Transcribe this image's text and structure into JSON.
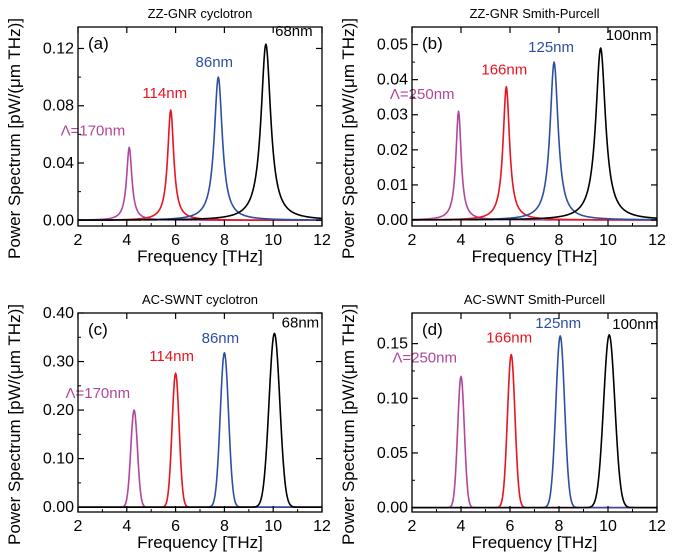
{
  "chart_data": [
    {
      "type": "line",
      "panel": "(a)",
      "title": "ZZ-GNR cyclotron",
      "xlabel": "Frequency [THz]",
      "ylabel": "Power Spectrum [pW/(μm THz)]",
      "xlim": [
        2,
        12
      ],
      "ylim": [
        -0.004,
        0.135
      ],
      "xticks": [
        2,
        4,
        6,
        8,
        10,
        12
      ],
      "yticks": [
        0.0,
        0.04,
        0.08,
        0.12
      ],
      "ytick_labels": [
        "0.00",
        "0.04",
        "0.08",
        "0.12"
      ],
      "series": [
        {
          "name": "Λ=170nm",
          "color": "#b3469a",
          "center": 4.1,
          "peak": 0.051,
          "hwhm": 0.13,
          "profile": "lorentz"
        },
        {
          "name": "114nm",
          "color": "#e8141f",
          "center": 5.8,
          "peak": 0.077,
          "hwhm": 0.15,
          "profile": "lorentz"
        },
        {
          "name": "86nm",
          "color": "#2d4fa3",
          "center": 7.75,
          "peak": 0.1,
          "hwhm": 0.2,
          "profile": "lorentz"
        },
        {
          "name": "68nm",
          "color": "#000000",
          "center": 9.7,
          "peak": 0.123,
          "hwhm": 0.24,
          "profile": "lorentz"
        }
      ]
    },
    {
      "type": "line",
      "panel": "(b)",
      "title": "ZZ-GNR Smith-Purcell",
      "xlabel": "Frequency [THz]",
      "ylabel": "Power Spectrum [pW/(μm THz)]",
      "xlim": [
        2,
        12
      ],
      "ylim": [
        -0.0017,
        0.055
      ],
      "xticks": [
        2,
        4,
        6,
        8,
        10,
        12
      ],
      "yticks": [
        0.0,
        0.01,
        0.02,
        0.03,
        0.04,
        0.05
      ],
      "ytick_labels": [
        "0.00",
        "0.01",
        "0.02",
        "0.03",
        "0.04",
        "0.05"
      ],
      "series": [
        {
          "name": "Λ=250nm",
          "color": "#b3469a",
          "center": 3.9,
          "peak": 0.031,
          "hwhm": 0.13,
          "profile": "lorentz"
        },
        {
          "name": "166nm",
          "color": "#e8141f",
          "center": 5.85,
          "peak": 0.038,
          "hwhm": 0.16,
          "profile": "lorentz"
        },
        {
          "name": "125nm",
          "color": "#2d4fa3",
          "center": 7.8,
          "peak": 0.045,
          "hwhm": 0.2,
          "profile": "lorentz"
        },
        {
          "name": "100nm",
          "color": "#000000",
          "center": 9.7,
          "peak": 0.049,
          "hwhm": 0.24,
          "profile": "lorentz"
        }
      ]
    },
    {
      "type": "line",
      "panel": "(c)",
      "title": "AC-SWNT cyclotron",
      "xlabel": "Frequency [THz]",
      "ylabel": "Power Spectrum [pW/(μm THz)]",
      "xlim": [
        2,
        12
      ],
      "ylim": [
        -0.01,
        0.4
      ],
      "xticks": [
        2,
        4,
        6,
        8,
        10,
        12
      ],
      "yticks": [
        0.0,
        0.1,
        0.2,
        0.3,
        0.4
      ],
      "ytick_labels": [
        "0.00",
        "0.10",
        "0.20",
        "0.30",
        "0.40"
      ],
      "series": [
        {
          "name": "Λ=170nm",
          "color": "#b3469a",
          "center": 4.3,
          "peak": 0.2,
          "hwhm": 0.16,
          "profile": "gauss"
        },
        {
          "name": "114nm",
          "color": "#e8141f",
          "center": 6.0,
          "peak": 0.276,
          "hwhm": 0.17,
          "profile": "gauss"
        },
        {
          "name": "86nm",
          "color": "#2d4fa3",
          "center": 8.0,
          "peak": 0.318,
          "hwhm": 0.2,
          "profile": "gauss"
        },
        {
          "name": "68nm",
          "color": "#000000",
          "center": 10.05,
          "peak": 0.358,
          "hwhm": 0.26,
          "profile": "gauss"
        }
      ]
    },
    {
      "type": "line",
      "panel": "(d)",
      "title": "AC-SWNT Smith-Purcell",
      "xlabel": "Frequency [THz]",
      "ylabel": "Power Spectrum [pW/(μm THz)]",
      "xlim": [
        2,
        12
      ],
      "ylim": [
        -0.004,
        0.178
      ],
      "xticks": [
        2,
        4,
        6,
        8,
        10,
        12
      ],
      "yticks": [
        0.0,
        0.05,
        0.1,
        0.15
      ],
      "ytick_labels": [
        "0.00",
        "0.05",
        "0.10",
        "0.15"
      ],
      "series": [
        {
          "name": "Λ=250nm",
          "color": "#b3469a",
          "center": 4.0,
          "peak": 0.12,
          "hwhm": 0.16,
          "profile": "gauss"
        },
        {
          "name": "166nm",
          "color": "#e8141f",
          "center": 6.05,
          "peak": 0.14,
          "hwhm": 0.18,
          "profile": "gauss"
        },
        {
          "name": "125nm",
          "color": "#2d4fa3",
          "center": 8.05,
          "peak": 0.157,
          "hwhm": 0.21,
          "profile": "gauss"
        },
        {
          "name": "100nm",
          "color": "#000000",
          "center": 10.05,
          "peak": 0.158,
          "hwhm": 0.27,
          "profile": "gauss"
        }
      ]
    }
  ]
}
